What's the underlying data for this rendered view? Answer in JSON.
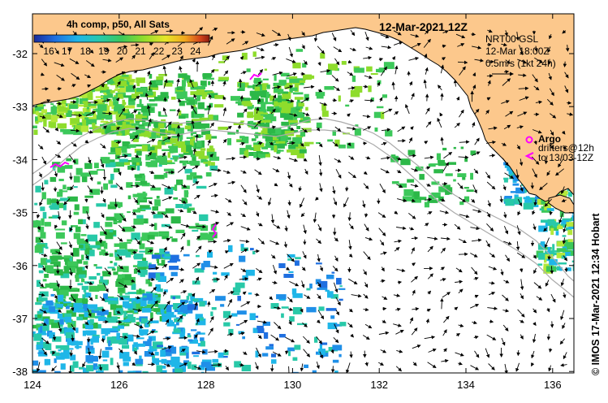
{
  "title": "12-Mar-2021 12Z",
  "colorbar": {
    "label": "4h comp, p50, All Sats",
    "ticks": [
      "16",
      "17",
      "18",
      "19",
      "20",
      "21",
      "22",
      "23",
      "24"
    ],
    "colors": [
      "#1a2a9c",
      "#1f6fe0",
      "#1fb6e8",
      "#28c9a8",
      "#3cc85a",
      "#8edc2c",
      "#e6e628",
      "#f2a81e",
      "#d2421a",
      "#8c1c10"
    ]
  },
  "current_info": {
    "line1": "NRT00 GSL",
    "line2": "12-Mar 18:00Z",
    "line3": "0.5m/s (1kt 24h)"
  },
  "legend": {
    "argo": "Argo",
    "drifters_line1": "drifters@12h",
    "drifters_line2": "to 13/03-12Z"
  },
  "credit": "© IMOS 17-Mar-2021 12:34 Hobart",
  "axes": {
    "x_ticks": [
      "124",
      "126",
      "128",
      "130",
      "132",
      "134",
      "136"
    ],
    "y_ticks": [
      "-32",
      "-33",
      "-34",
      "-35",
      "-36",
      "-37",
      "-38"
    ],
    "lon_range": [
      124,
      136.5
    ],
    "lat_range": [
      -31.3,
      -38.1
    ]
  },
  "colors": {
    "land": "#fcc88c",
    "coast": "#000000",
    "isobath": "#aaaaaa",
    "argo": "#ff00ff",
    "drifter": "#ff00ff"
  }
}
